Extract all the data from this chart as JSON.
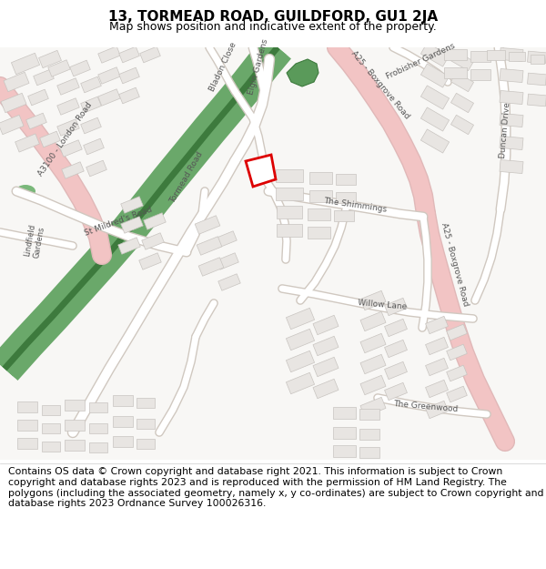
{
  "title_line1": "13, TORMEAD ROAD, GUILDFORD, GU1 2JA",
  "title_line2": "Map shows position and indicative extent of the property.",
  "footer_text": "Contains OS data © Crown copyright and database right 2021. This information is subject to Crown copyright and database rights 2023 and is reproduced with the permission of HM Land Registry. The polygons (including the associated geometry, namely x, y co-ordinates) are subject to Crown copyright and database rights 2023 Ordnance Survey 100026316.",
  "map_bg": "#f7f6f4",
  "road_pink": "#f2c4c4",
  "road_white": "#ffffff",
  "road_outline_color": "#d0c8c0",
  "green_fill": "#6aa86a",
  "green_dark_stripe": "#3d7a3d",
  "building_fill": "#e8e5e2",
  "building_edge": "#c8c4c0",
  "plot_edge": "#dd0000",
  "plot_fill": "#ffffff",
  "title_fontsize": 11,
  "subtitle_fontsize": 9,
  "footer_fontsize": 7.8,
  "label_color": "#555555",
  "label_fontsize": 6.5
}
